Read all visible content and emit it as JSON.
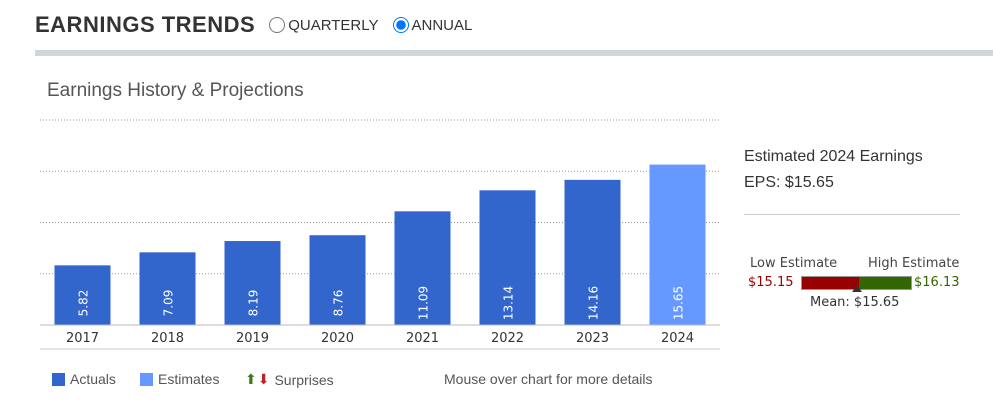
{
  "header": {
    "title": "EARNINGS TRENDS",
    "options": [
      "QUARTERLY",
      "ANNUAL"
    ],
    "selected": "ANNUAL"
  },
  "subtitle": "Earnings History & Projections",
  "chart_data": {
    "type": "bar",
    "title": "Earnings History & Projections",
    "categories": [
      "2017",
      "2018",
      "2019",
      "2020",
      "2021",
      "2022",
      "2023",
      "2024"
    ],
    "values": [
      5.82,
      7.09,
      8.19,
      8.76,
      11.09,
      13.14,
      14.16,
      15.65
    ],
    "labels": [
      "5.82",
      "7.09",
      "8.19",
      "8.76",
      "11.09",
      "13.14",
      "14.16",
      "15.65"
    ],
    "kind": [
      "actual",
      "actual",
      "actual",
      "actual",
      "actual",
      "actual",
      "actual",
      "estimate"
    ],
    "ylim": [
      0,
      20
    ],
    "gridlines": [
      5,
      10,
      15,
      20
    ],
    "colors": {
      "actual": "#3366cc",
      "estimate": "#6699ff"
    }
  },
  "estimate": {
    "line1": "Estimated 2024 Earnings",
    "line2": "EPS: $15.65",
    "low_label": "Low Estimate",
    "high_label": "High Estimate",
    "low": "$15.15",
    "high": "$16.13",
    "mean": "Mean: $15.65",
    "low_value": 15.15,
    "high_value": 16.13,
    "mean_value": 15.65
  },
  "legend": {
    "actuals": "Actuals",
    "estimates": "Estimates",
    "surprises": "Surprises",
    "hint": "Mouse over chart for more details"
  }
}
